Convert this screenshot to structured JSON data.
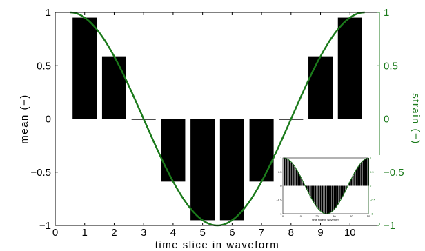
{
  "chart_data": {
    "type": "bar",
    "xlabel": "time slice in waveform",
    "ylabel": "mean (−)",
    "y2label": "strain (−)",
    "xlim": [
      0,
      11
    ],
    "ylim": [
      -1,
      1
    ],
    "y2lim": [
      -1,
      1
    ],
    "xticks": [
      "0",
      "1",
      "2",
      "3",
      "4",
      "5",
      "6",
      "7",
      "8",
      "9",
      "10"
    ],
    "yticks": [
      "−1",
      "−0.5",
      "0",
      "0.5",
      "1"
    ],
    "y2ticks": [
      "−1",
      "−0.5",
      "0",
      "0.5",
      "1"
    ],
    "grid": false,
    "bars": {
      "x": [
        1,
        2,
        3,
        4,
        5,
        6,
        7,
        8,
        9,
        10
      ],
      "values": [
        0.951,
        0.588,
        0.0,
        -0.588,
        -0.951,
        -0.951,
        -0.588,
        0.0,
        0.588,
        0.951
      ],
      "color": "#000000"
    },
    "line": {
      "axis": "right",
      "function": "cos(2π(x−0.5)/10)",
      "x_range": [
        0.5,
        10.5
      ],
      "color": "#1b7a1b"
    },
    "inset": {
      "type": "bar",
      "xlabel": "time slice in waveform",
      "xlim": [
        0,
        50
      ],
      "ylim": [
        -1,
        1
      ],
      "xticks": [
        "0",
        "10",
        "20",
        "30",
        "40",
        "50"
      ],
      "yticks": [
        "−1",
        "−0.5",
        "0",
        "0.5",
        "1"
      ],
      "y2ticks": [
        "−1",
        "−0.5",
        "0",
        "0.5",
        "1"
      ],
      "bar_count": 50
    }
  },
  "colors": {
    "bars": "#000000",
    "strain_line": "#1b7a1b",
    "right_axis": "#1b7a1b"
  }
}
